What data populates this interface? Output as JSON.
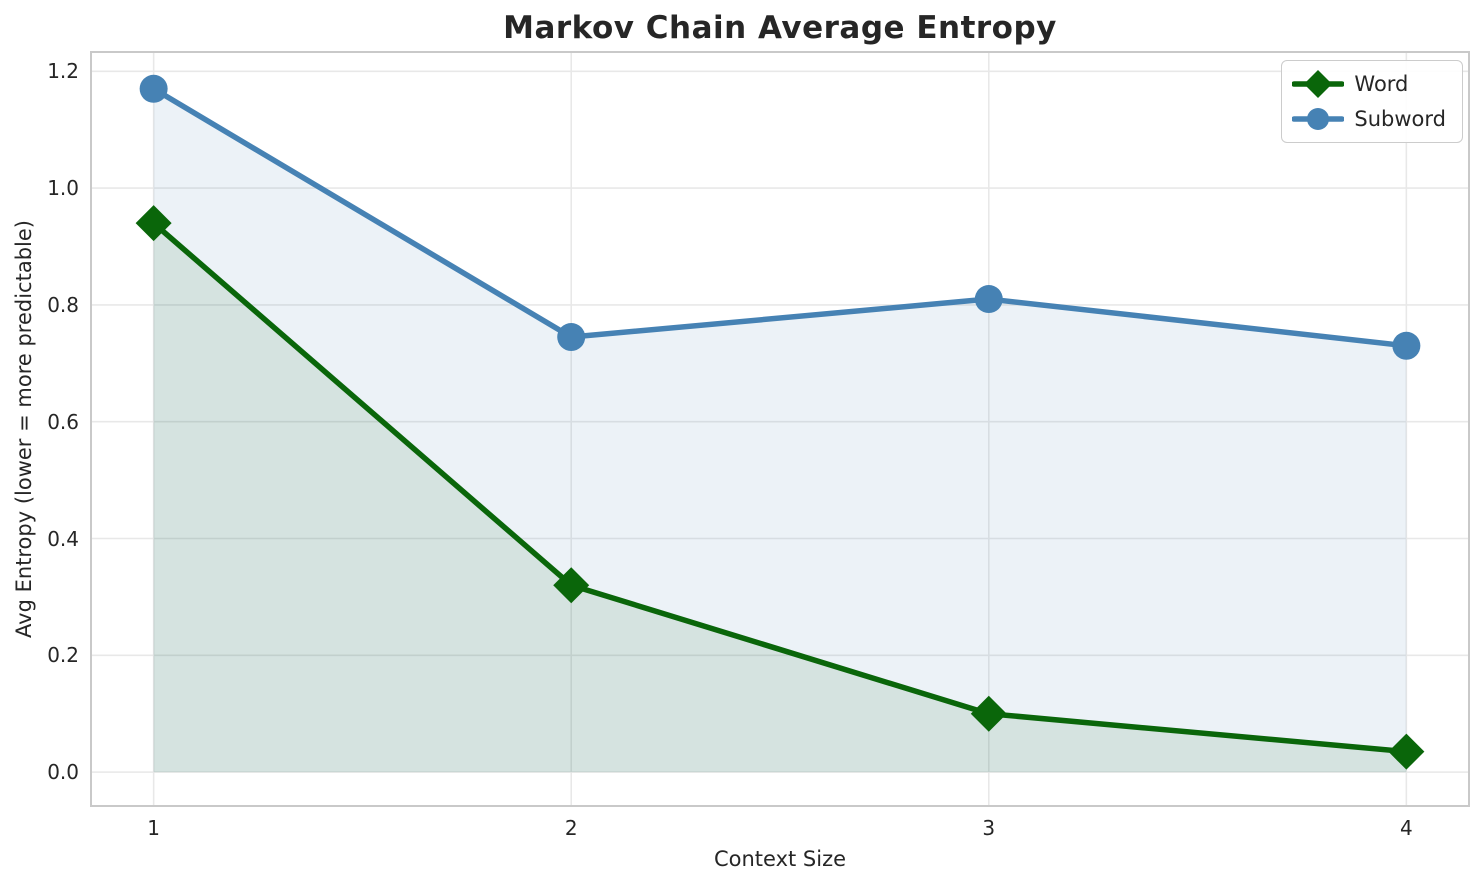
{
  "chart_data": {
    "type": "line",
    "title": "Markov Chain Average Entropy",
    "xlabel": "Context Size",
    "ylabel": "Avg Entropy (lower = more predictable)",
    "x": [
      1,
      2,
      3,
      4
    ],
    "xticks": [
      "1",
      "2",
      "3",
      "4"
    ],
    "yticks": [
      "0.0",
      "0.2",
      "0.4",
      "0.6",
      "0.8",
      "1.0",
      "1.2"
    ],
    "xlim": [
      0.85,
      4.15
    ],
    "ylim": [
      -0.058,
      1.233
    ],
    "grid": true,
    "legend_position": "upper right",
    "series": [
      {
        "name": "Word",
        "marker": "diamond",
        "color": "#0a660a",
        "fill_alpha": 0.1,
        "values": [
          0.94,
          0.32,
          0.1,
          0.035
        ]
      },
      {
        "name": "Subword",
        "marker": "circle",
        "color": "#4682b4",
        "fill_alpha": 0.1,
        "values": [
          1.17,
          0.745,
          0.81,
          0.73
        ]
      }
    ],
    "style": {
      "grid_color": "#e8e8e8",
      "spine_color": "#c9c9c9",
      "text_color": "#262626",
      "line_width": 5.5
    }
  }
}
